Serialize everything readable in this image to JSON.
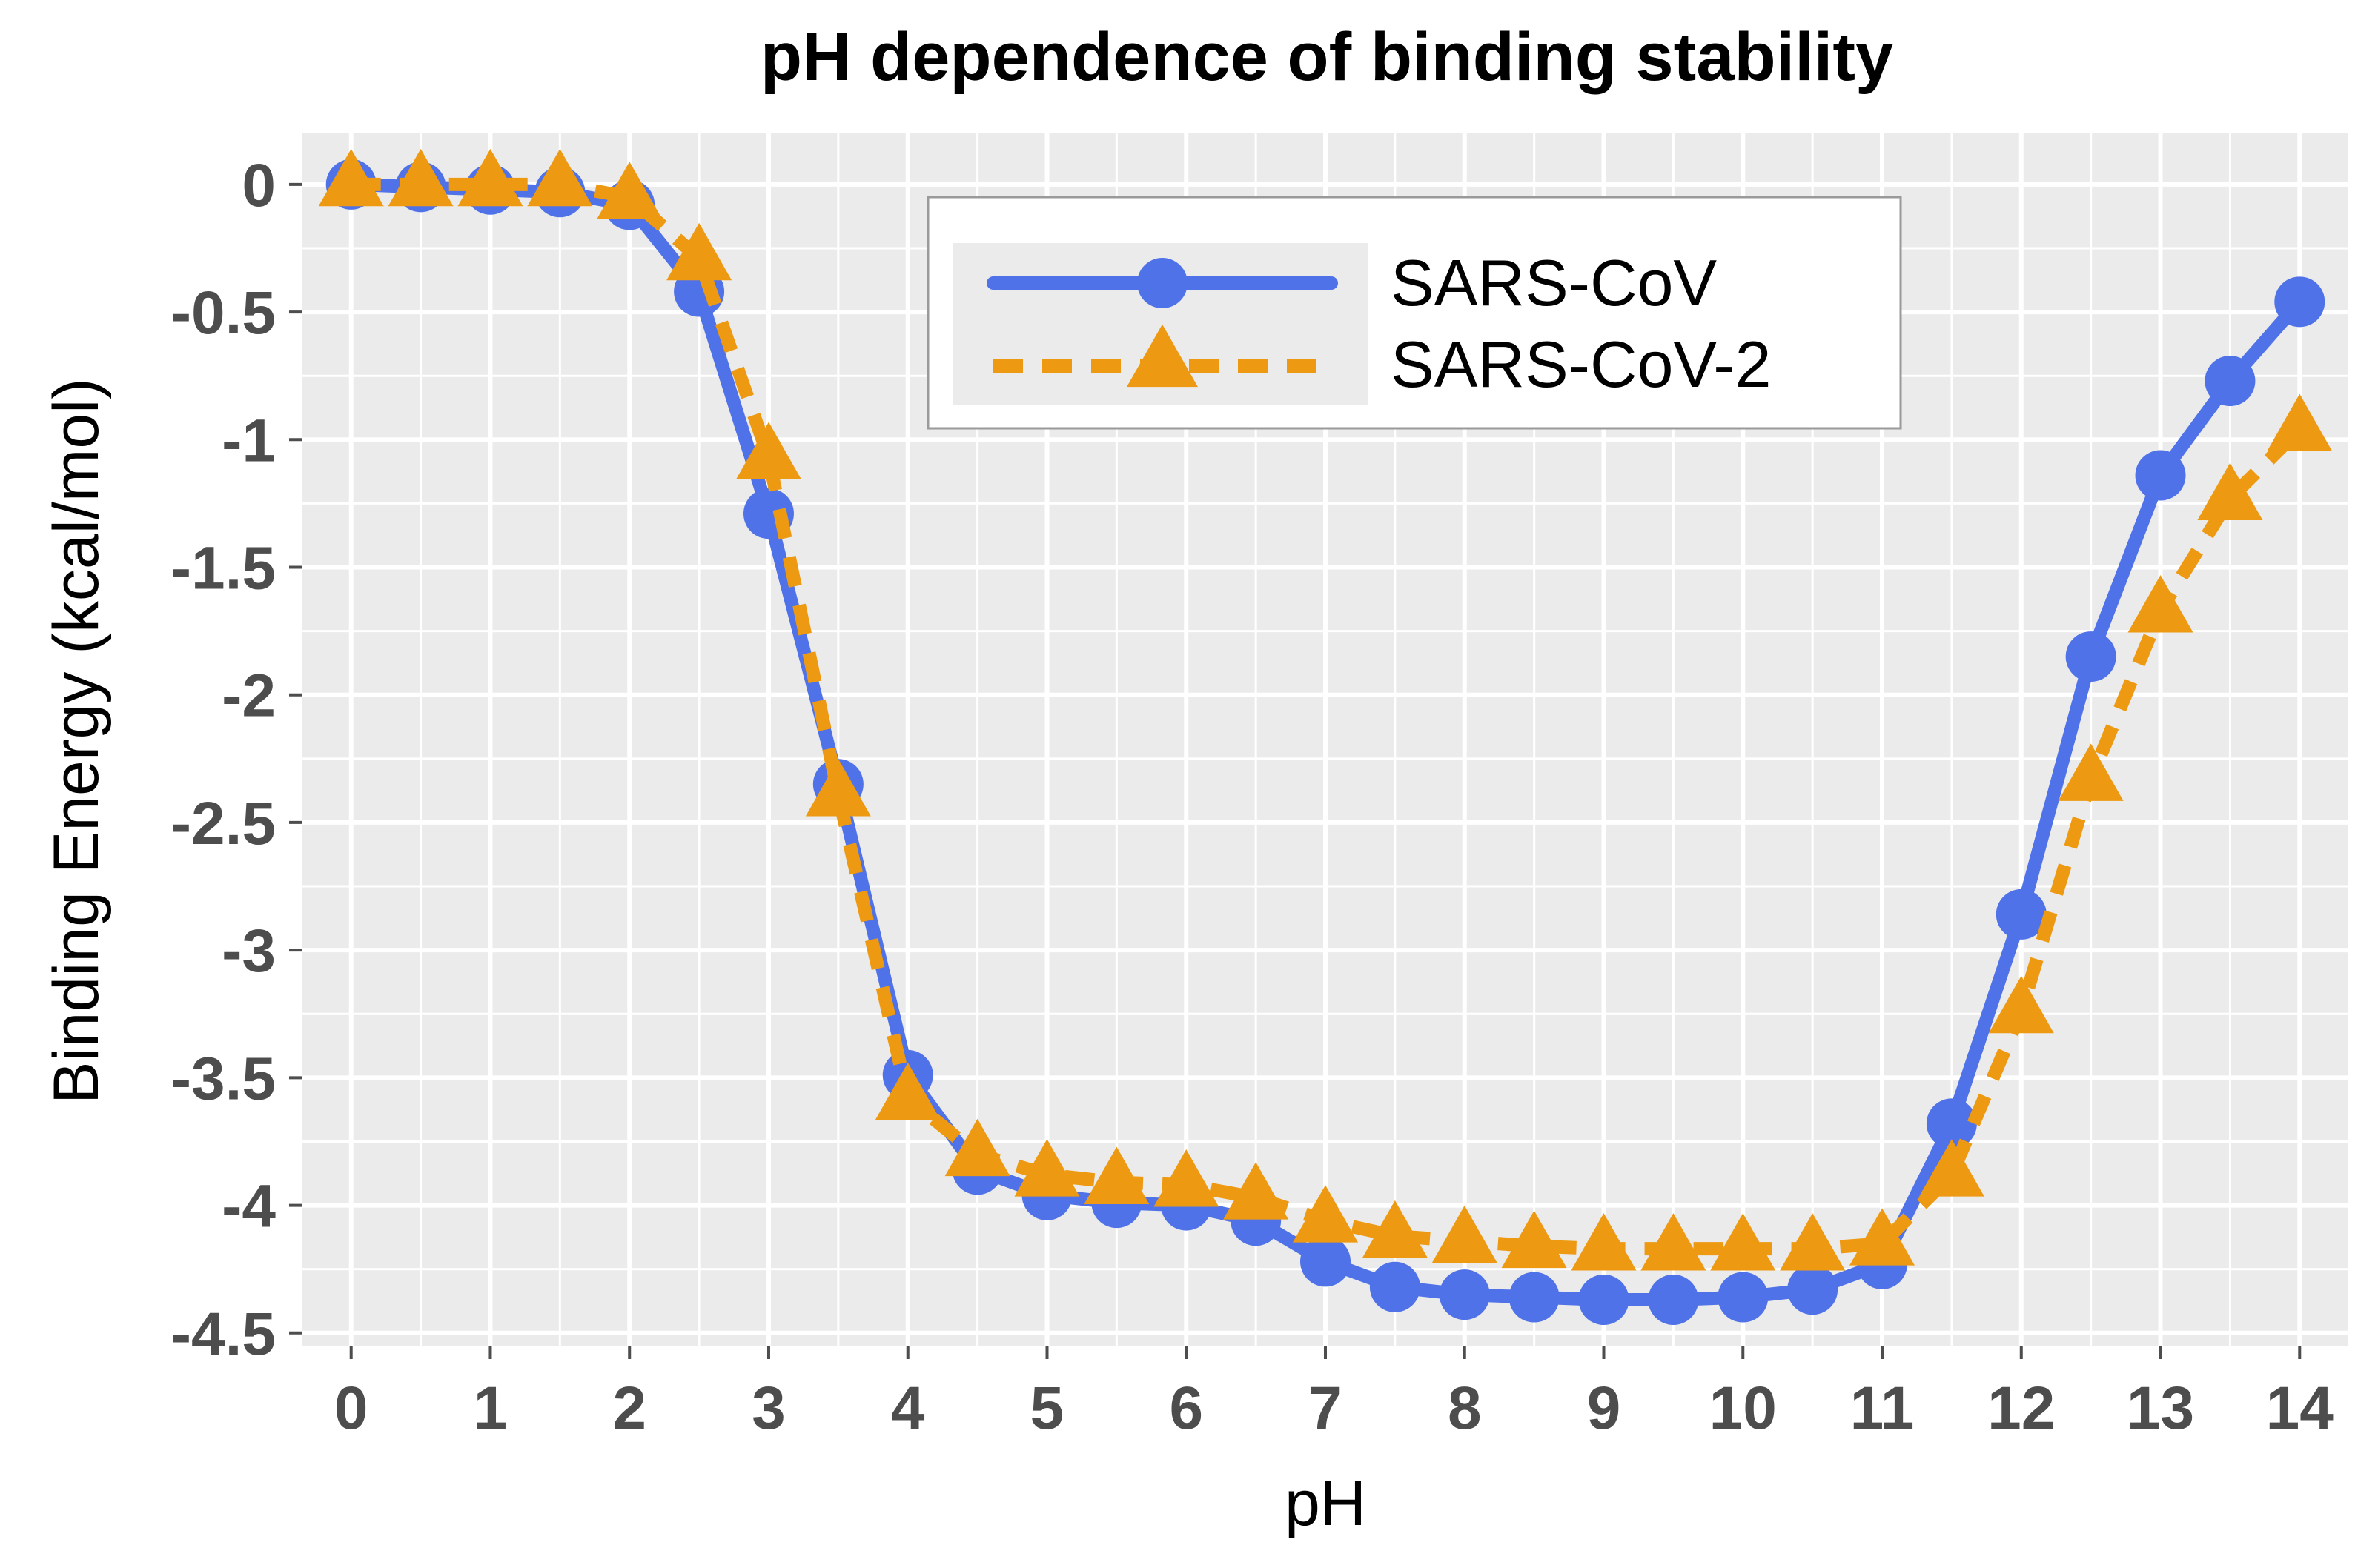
{
  "chart_data": {
    "type": "line",
    "title": "pH dependence of binding stability",
    "xlabel": "pH",
    "ylabel": "Binding Energy (kcal/mol)",
    "xlim": [
      -0.35,
      14.35
    ],
    "ylim": [
      -4.55,
      0.2
    ],
    "x_ticks": [
      0,
      1,
      2,
      3,
      4,
      5,
      6,
      7,
      8,
      9,
      10,
      11,
      12,
      13,
      14
    ],
    "x_tick_labels": [
      "0",
      "1",
      "2",
      "3",
      "4",
      "5",
      "6",
      "7",
      "8",
      "9",
      "10",
      "11",
      "12",
      "13",
      "14"
    ],
    "y_ticks": [
      0,
      -0.5,
      -1,
      -1.5,
      -2,
      -2.5,
      -3,
      -3.5,
      -4,
      -4.5
    ],
    "y_tick_labels": [
      "0",
      "-0.5",
      "-1",
      "-1.5",
      "-2",
      "-2.5",
      "-3",
      "-3.5",
      "-4",
      "-4.5"
    ],
    "grid": true,
    "legend_position": "top-center",
    "x": [
      0,
      0.5,
      1,
      1.5,
      2,
      2.5,
      3,
      3.5,
      4,
      4.5,
      5,
      5.5,
      6,
      6.5,
      7,
      7.5,
      8,
      8.5,
      9,
      9.5,
      10,
      10.5,
      11,
      11.5,
      12,
      12.5,
      13,
      13.5,
      14
    ],
    "series": [
      {
        "name": "SARS-CoV",
        "color": "#4f72e8",
        "line_style": "solid",
        "marker": "circle",
        "values": [
          0.0,
          -0.01,
          -0.02,
          -0.03,
          -0.08,
          -0.42,
          -1.29,
          -2.35,
          -3.49,
          -3.86,
          -3.96,
          -3.99,
          -4.0,
          -4.06,
          -4.22,
          -4.32,
          -4.35,
          -4.36,
          -4.37,
          -4.37,
          -4.36,
          -4.33,
          -4.23,
          -3.68,
          -2.86,
          -1.85,
          -1.14,
          -0.77,
          -0.46
        ]
      },
      {
        "name": "SARS-CoV-2",
        "color": "#ed9a12",
        "line_style": "dashed",
        "marker": "triangle",
        "values": [
          0.0,
          0.0,
          0.0,
          0.0,
          -0.05,
          -0.29,
          -1.07,
          -2.39,
          -3.58,
          -3.8,
          -3.88,
          -3.91,
          -3.92,
          -3.97,
          -4.06,
          -4.12,
          -4.14,
          -4.16,
          -4.17,
          -4.17,
          -4.17,
          -4.17,
          -4.15,
          -3.88,
          -3.24,
          -2.33,
          -1.67,
          -1.23,
          -0.96
        ]
      }
    ]
  }
}
